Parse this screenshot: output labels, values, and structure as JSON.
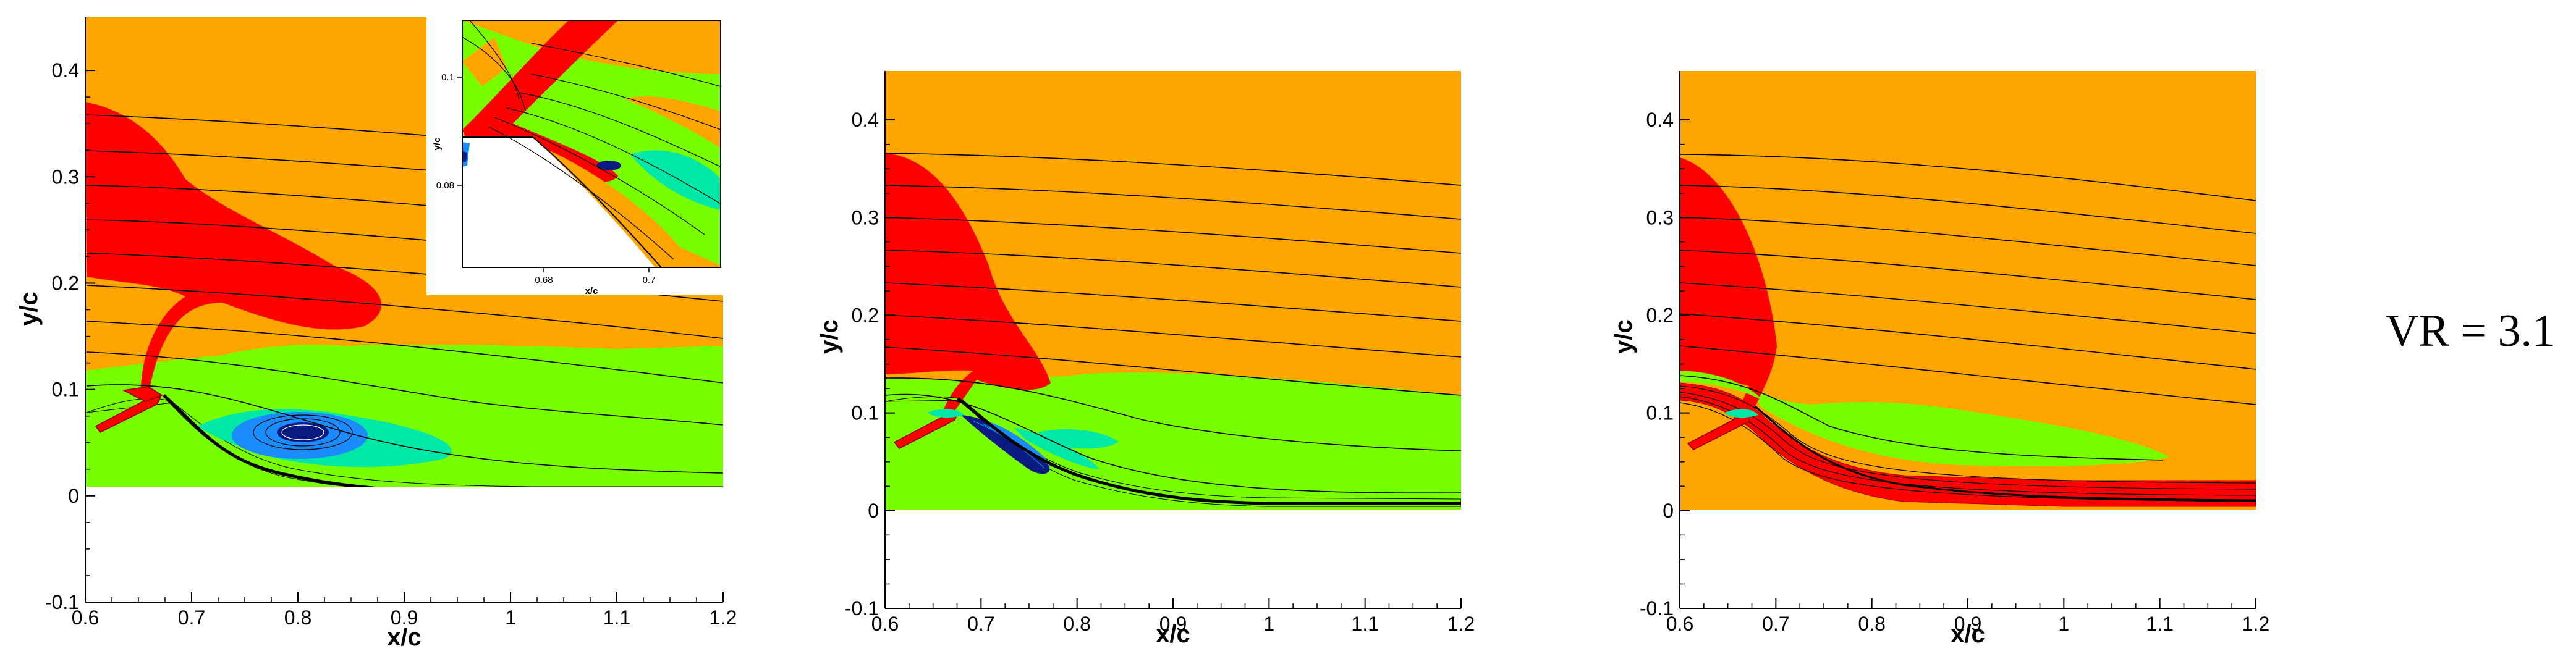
{
  "chart_data": [
    {
      "type": "contour",
      "xlabel": "x/c",
      "ylabel": "y/c",
      "xlim": [
        0.6,
        1.2
      ],
      "ylim": [
        -0.1,
        0.45
      ],
      "x_ticks": [
        "0.6",
        "0.7",
        "0.8",
        "0.9",
        "1",
        "1.1",
        "1.2"
      ],
      "y_ticks": [
        "-0.1",
        "0",
        "0.1",
        "0.2",
        "0.3",
        "0.4"
      ],
      "inset": {
        "xlabel": "x/c",
        "ylabel": "y/c",
        "x_ticks": [
          "0.68",
          "0.7"
        ],
        "y_ticks": [
          "0.08",
          "0.1"
        ]
      }
    },
    {
      "type": "contour",
      "xlabel": "x/c",
      "ylabel": "y/c",
      "xlim": [
        0.6,
        1.2
      ],
      "ylim": [
        -0.1,
        0.45
      ],
      "x_ticks": [
        "0.6",
        "0.7",
        "0.8",
        "0.9",
        "1",
        "1.1",
        "1.2"
      ],
      "y_ticks": [
        "-0.1",
        "0",
        "0.1",
        "0.2",
        "0.3",
        "0.4"
      ]
    },
    {
      "type": "contour",
      "xlabel": "x/c",
      "ylabel": "y/c",
      "xlim": [
        0.6,
        1.2
      ],
      "ylim": [
        -0.1,
        0.45
      ],
      "x_ticks": [
        "0.6",
        "0.7",
        "0.8",
        "0.9",
        "1",
        "1.1",
        "1.2"
      ],
      "y_ticks": [
        "-0.1",
        "0",
        "0.1",
        "0.2",
        "0.3",
        "0.4"
      ]
    }
  ],
  "annotation": "VR = 3.1",
  "colors": {
    "orange": "#ffa500",
    "red": "#ff0000",
    "green": "#77ff00",
    "cyan": "#00e8a8",
    "blue": "#1a8cff",
    "dark_blue": "#0a1a80"
  }
}
